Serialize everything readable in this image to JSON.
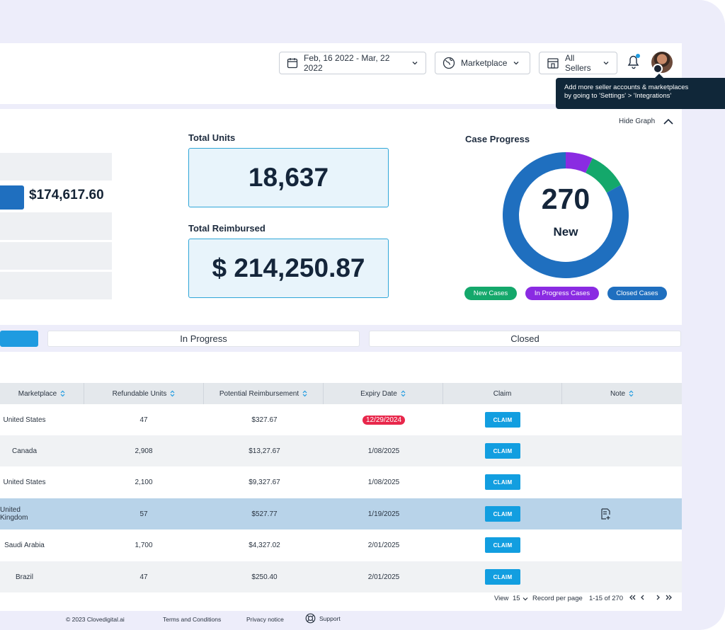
{
  "header": {
    "date_range": "Feb, 16 2022 - Mar, 22 2022",
    "marketplace_filter": "Marketplace",
    "sellers_filter": "All Sellers",
    "tooltip_line1": "Add more seller accounts & marketplaces",
    "tooltip_line2": "by going to 'Settings' > 'Integrations'"
  },
  "summary": {
    "bar_value": "$174,617.60",
    "total_units_label": "Total Units",
    "total_units_value": "18,637",
    "total_reimbursed_label": "Total Reimbursed",
    "total_reimbursed_value": "$ 214,250.87",
    "hide_graph": "Hide Graph",
    "case_progress_title": "Case Progress",
    "donut_value": "270",
    "donut_label": "New",
    "legend": [
      {
        "label": "New Cases",
        "color": "#14a86b"
      },
      {
        "label": "In Progress Cases",
        "color": "#8a2be2"
      },
      {
        "label": "Closed Cases",
        "color": "#1f6fbf"
      }
    ]
  },
  "tabs": [
    {
      "label": ""
    },
    {
      "label": "In Progress"
    },
    {
      "label": "Closed"
    }
  ],
  "table": {
    "columns": [
      "Marketplace",
      "Refundable Units",
      "Potential Reimbursement",
      "Expiry Date",
      "Claim",
      "Note"
    ],
    "claim_label": "CLAIM",
    "rows": [
      {
        "marketplace": "United States",
        "units": "47",
        "reimbursement": "$327.67",
        "expiry": "12/29/2024",
        "expired": true
      },
      {
        "marketplace": "Canada",
        "units": "2,908",
        "reimbursement": "$13,27.67",
        "expiry": "1/08/2025"
      },
      {
        "marketplace": "United States",
        "units": "2,100",
        "reimbursement": "$9,327.67",
        "expiry": "1/08/2025"
      },
      {
        "marketplace": "United Kingdom",
        "units": "57",
        "reimbursement": "$527.77",
        "expiry": "1/19/2025",
        "note": true
      },
      {
        "marketplace": "Saudi Arabia",
        "units": "1,700",
        "reimbursement": "$4,327.02",
        "expiry": "2/01/2025"
      },
      {
        "marketplace": "Brazil",
        "units": "47",
        "reimbursement": "$250.40",
        "expiry": "2/01/2025"
      }
    ]
  },
  "pagination": {
    "view_label": "View",
    "per_page": "15",
    "record_label": "Record per page",
    "range": "1-15 of 270"
  },
  "footer": {
    "copyright": "© 2023 Clovedigital.ai",
    "terms": "Terms and Conditions",
    "privacy": "Privacy notice",
    "support": "Support"
  },
  "chart_data": {
    "type": "pie",
    "title": "Case Progress",
    "categories": [
      "New Cases",
      "In Progress Cases",
      "Closed Cases"
    ],
    "values": [
      0.1,
      0.07,
      0.83
    ],
    "colors": [
      "#14a86b",
      "#8a2be2",
      "#1f6fbf"
    ]
  }
}
